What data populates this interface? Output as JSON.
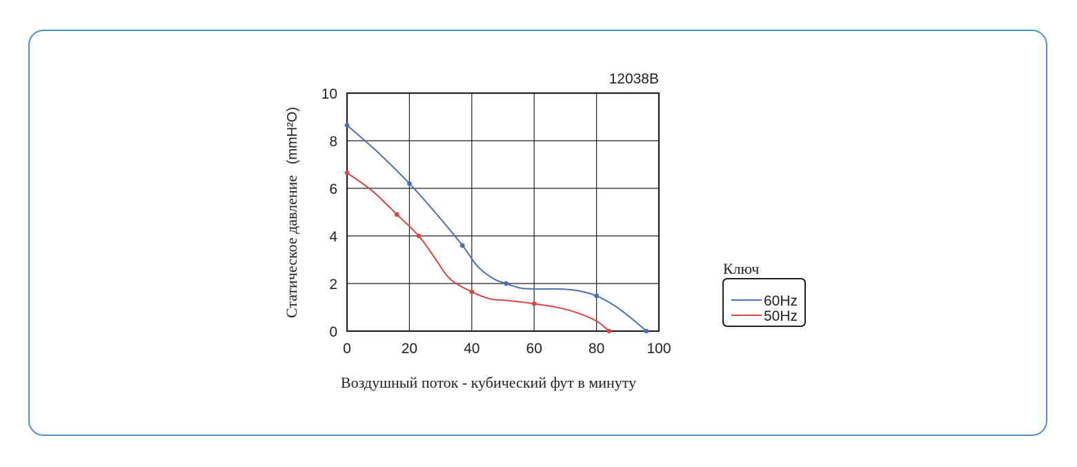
{
  "chart_data": {
    "type": "line",
    "title": "12038B",
    "xlabel": "Воздушный поток - кубический фут в минуту",
    "ylabel": "Статическое давление",
    "ylabel_unit": "(mmH²O)",
    "xlim": [
      0,
      100
    ],
    "ylim": [
      0,
      10
    ],
    "x_ticks": [
      "0",
      "20",
      "40",
      "60",
      "80",
      "100"
    ],
    "y_ticks": [
      "0",
      "2",
      "4",
      "6",
      "8",
      "10"
    ],
    "grid": true,
    "legend": {
      "title": "Ключ",
      "position": "right",
      "entries": [
        "60Hz",
        "50Hz"
      ]
    },
    "series": [
      {
        "name": "60Hz",
        "color": "#4a6fb5",
        "markers": [
          [
            0,
            8.65
          ],
          [
            20,
            6.2
          ],
          [
            37,
            3.6
          ],
          [
            51,
            2.0
          ],
          [
            80,
            1.48
          ],
          [
            96,
            0.0
          ]
        ],
        "curve": [
          [
            0,
            8.65
          ],
          [
            10,
            7.5
          ],
          [
            20,
            6.2
          ],
          [
            28.5,
            4.95
          ],
          [
            37,
            3.6
          ],
          [
            42,
            2.7
          ],
          [
            47,
            2.2
          ],
          [
            51,
            2.0
          ],
          [
            56,
            1.8
          ],
          [
            62,
            1.77
          ],
          [
            68,
            1.77
          ],
          [
            74,
            1.7
          ],
          [
            80,
            1.48
          ],
          [
            86,
            1.05
          ],
          [
            92,
            0.45
          ],
          [
            96,
            0.0
          ]
        ]
      },
      {
        "name": "50Hz",
        "color": "#d9443f",
        "markers": [
          [
            0,
            6.65
          ],
          [
            16,
            4.9
          ],
          [
            23,
            4.0
          ],
          [
            40,
            1.65
          ],
          [
            60,
            1.15
          ],
          [
            84,
            0.0
          ]
        ],
        "curve": [
          [
            0,
            6.65
          ],
          [
            8,
            5.9
          ],
          [
            16,
            4.9
          ],
          [
            23,
            4.0
          ],
          [
            28,
            3.1
          ],
          [
            33,
            2.2
          ],
          [
            40,
            1.65
          ],
          [
            46,
            1.35
          ],
          [
            52,
            1.28
          ],
          [
            60,
            1.15
          ],
          [
            68,
            0.98
          ],
          [
            74,
            0.76
          ],
          [
            80,
            0.42
          ],
          [
            84,
            0.0
          ]
        ]
      }
    ]
  }
}
